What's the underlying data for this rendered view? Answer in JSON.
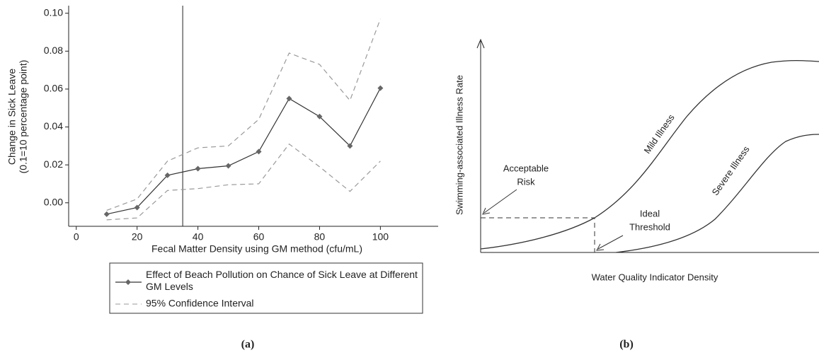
{
  "chart_data": [
    {
      "type": "line",
      "xlabel": "Fecal Matter Density using GM method (cfu/mL)",
      "ylabel": [
        "Change in Sick Leave",
        "(0.1=10 percentage point)"
      ],
      "x": [
        10,
        20,
        30,
        40,
        50,
        60,
        70,
        80,
        90,
        100
      ],
      "series": [
        {
          "name": "Effect of Beach Pollution on Chance of Sick Leave at Different GM Levels",
          "color": "#333333",
          "values": [
            -0.006,
            -0.0025,
            0.0145,
            0.018,
            0.0195,
            0.027,
            0.055,
            0.0455,
            0.03,
            0.0605
          ]
        }
      ],
      "ci": {
        "name": "95% Confidence Interval",
        "color": "#999999",
        "upper": [
          -0.004,
          0.002,
          0.022,
          0.029,
          0.03,
          0.044,
          0.079,
          0.073,
          0.054,
          0.097
        ],
        "lower": [
          -0.009,
          -0.008,
          0.0065,
          0.0075,
          0.0095,
          0.01,
          0.031,
          0.019,
          0.006,
          0.022
        ]
      },
      "vline": 35,
      "xlim": [
        -2.5,
        119
      ],
      "xticks": [
        0,
        20,
        40,
        60,
        80,
        100
      ],
      "ylim": [
        -0.0124,
        0.104
      ],
      "yticks": [
        {
          "value": 0,
          "label": "0.00"
        },
        {
          "value": 0.02,
          "label": "0.02"
        },
        {
          "value": 0.04,
          "label": "0.04"
        },
        {
          "value": 0.06,
          "label": "0.06"
        },
        {
          "value": 0.08,
          "label": "0.08"
        },
        {
          "value": 0.1,
          "label": "0.10"
        }
      ],
      "caption": "(a)"
    },
    {
      "type": "diagram",
      "ylabel": "Swimming-associated Illness Rate",
      "xlabel": "Water Quality Indicator Density",
      "acceptable_risk": [
        "Acceptable",
        "Risk"
      ],
      "ideal_threshold": [
        "Ideal",
        "Threshold"
      ],
      "mild": "Mild Illness",
      "severe": "Severe Illness",
      "caption": "(b)"
    }
  ]
}
